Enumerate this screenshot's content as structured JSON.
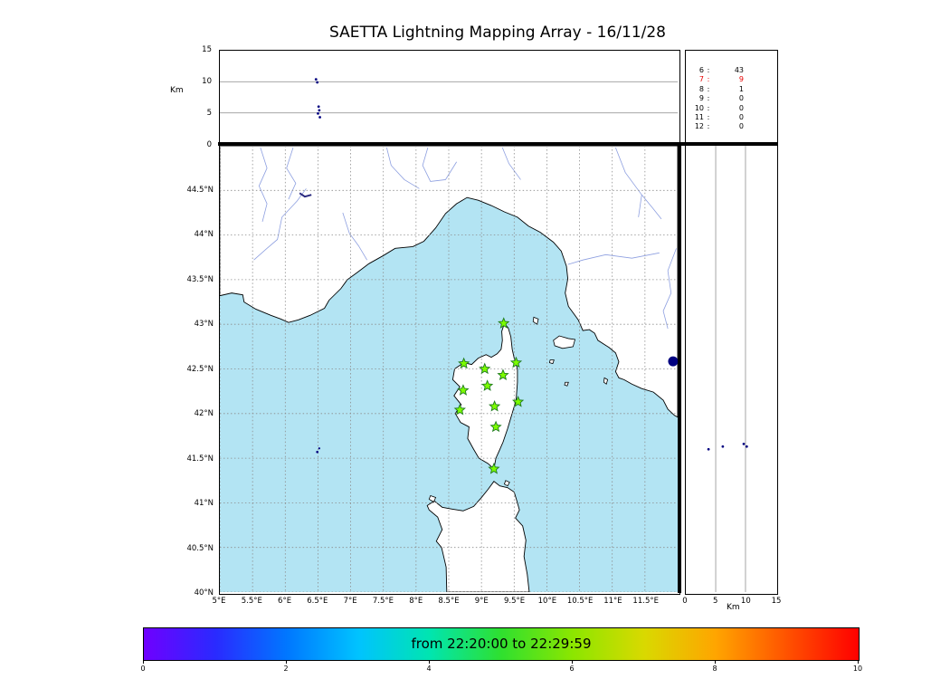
{
  "title": "SAETTA Lightning Mapping Array - 16/11/28",
  "chart_data": {
    "type": "scatter",
    "description": "Lightning Mapping Array composite: altitude vs longitude (top), plan map view (center), altitude vs latitude (right), time colorbar (bottom)",
    "alt_axis": {
      "label": "Km",
      "max": 15,
      "ticks": [
        0,
        5,
        10,
        15
      ],
      "gridlines": [
        5,
        10
      ]
    },
    "map": {
      "lon_min": 5,
      "lon_max": 12,
      "lat_min": 40,
      "lat_max": 45,
      "lon_ticks": [
        {
          "v": 5,
          "label": "5°E"
        },
        {
          "v": 5.5,
          "label": "5.5°E"
        },
        {
          "v": 6,
          "label": "6°E"
        },
        {
          "v": 6.5,
          "label": "6.5°E"
        },
        {
          "v": 7,
          "label": "7°E"
        },
        {
          "v": 7.5,
          "label": "7.5°E"
        },
        {
          "v": 8,
          "label": "8°E"
        },
        {
          "v": 8.5,
          "label": "8.5°E"
        },
        {
          "v": 9,
          "label": "9°E"
        },
        {
          "v": 9.5,
          "label": "9.5°E"
        },
        {
          "v": 10,
          "label": "10°E"
        },
        {
          "v": 10.5,
          "label": "10.5°E"
        },
        {
          "v": 11,
          "label": "11°E"
        },
        {
          "v": 11.5,
          "label": "11.5°E"
        }
      ],
      "lat_ticks": [
        {
          "v": 44.5,
          "label": "44.5°N"
        },
        {
          "v": 44,
          "label": "44°N"
        },
        {
          "v": 43.5,
          "label": "43.5°N"
        },
        {
          "v": 43,
          "label": "43°N"
        },
        {
          "v": 42.5,
          "label": "42.5°N"
        },
        {
          "v": 42,
          "label": "42°N"
        },
        {
          "v": 41.5,
          "label": "41.5°N"
        },
        {
          "v": 41,
          "label": "41°N"
        },
        {
          "v": 40.5,
          "label": "40.5°N"
        },
        {
          "v": 40,
          "label": "40°N"
        }
      ]
    },
    "station_counts": [
      {
        "id": "6",
        "count": "43",
        "highlight": false
      },
      {
        "id": "7",
        "count": "9",
        "highlight": true
      },
      {
        "id": "8",
        "count": "1",
        "highlight": false
      },
      {
        "id": "9",
        "count": "0",
        "highlight": false
      },
      {
        "id": "10",
        "count": "0",
        "highlight": false
      },
      {
        "id": "11",
        "count": "0",
        "highlight": false
      },
      {
        "id": "12",
        "count": "0",
        "highlight": false
      }
    ],
    "stations": [
      [
        9.34,
        43.01
      ],
      [
        8.73,
        42.56
      ],
      [
        9.05,
        42.5
      ],
      [
        9.33,
        42.43
      ],
      [
        9.53,
        42.57
      ],
      [
        8.72,
        42.26
      ],
      [
        9.09,
        42.31
      ],
      [
        8.67,
        42.04
      ],
      [
        9.2,
        42.08
      ],
      [
        9.56,
        42.13
      ],
      [
        9.22,
        41.85
      ],
      [
        9.19,
        41.38
      ]
    ],
    "events": {
      "plan": [
        {
          "lon": 11.93,
          "lat": 42.585,
          "r": 5.5
        },
        {
          "lon": 6.49,
          "lat": 41.57,
          "r": 1.3
        },
        {
          "lon": 6.52,
          "lat": 41.61,
          "r": 1.1
        }
      ],
      "lon_alt": [
        [
          6.47,
          10.4
        ],
        [
          6.49,
          9.9
        ],
        [
          6.51,
          6.0
        ],
        [
          6.52,
          5.4
        ],
        [
          6.5,
          4.9
        ],
        [
          6.53,
          4.3
        ]
      ],
      "alt_lat": [
        [
          3.8,
          41.6
        ],
        [
          6.2,
          41.63
        ],
        [
          9.7,
          41.66
        ],
        [
          10.2,
          41.63
        ]
      ]
    },
    "colorbar": {
      "label": "from 22:20:00 to 22:29:59",
      "ticks": [
        0,
        2,
        4,
        6,
        8,
        10
      ],
      "max": 10,
      "colors": [
        "#6f00ff",
        "#2a2aff",
        "#0077ff",
        "#00c3ff",
        "#00e5b0",
        "#2fe02f",
        "#8ce600",
        "#d9d900",
        "#ffa500",
        "#ff5200",
        "#ff0000"
      ]
    },
    "colors": {
      "sea": "#b3e4f3",
      "land": "#ffffff",
      "coast": "#000000",
      "river": "#8d9fe0",
      "grid": "#8c8c8c",
      "station_fill": "#7CFC00",
      "station_edge": "#1f7a1f",
      "event": "#000080",
      "highlight": "#e80000",
      "lake": "#2a2a80"
    },
    "basemap": {
      "mainland": [
        [
          5.0,
          43.32
        ],
        [
          5.18,
          43.35
        ],
        [
          5.35,
          43.33
        ],
        [
          5.37,
          43.25
        ],
        [
          5.55,
          43.17
        ],
        [
          5.78,
          43.1
        ],
        [
          5.93,
          43.06
        ],
        [
          6.05,
          43.02
        ],
        [
          6.2,
          43.05
        ],
        [
          6.38,
          43.1
        ],
        [
          6.6,
          43.18
        ],
        [
          6.67,
          43.27
        ],
        [
          6.85,
          43.4
        ],
        [
          6.95,
          43.5
        ],
        [
          7.1,
          43.58
        ],
        [
          7.28,
          43.68
        ],
        [
          7.5,
          43.77
        ],
        [
          7.68,
          43.85
        ],
        [
          7.95,
          43.87
        ],
        [
          8.12,
          43.93
        ],
        [
          8.3,
          44.08
        ],
        [
          8.45,
          44.24
        ],
        [
          8.62,
          44.35
        ],
        [
          8.78,
          44.42
        ],
        [
          8.95,
          44.39
        ],
        [
          9.15,
          44.33
        ],
        [
          9.35,
          44.26
        ],
        [
          9.55,
          44.2
        ],
        [
          9.72,
          44.1
        ],
        [
          9.9,
          44.03
        ],
        [
          10.1,
          43.92
        ],
        [
          10.22,
          43.82
        ],
        [
          10.3,
          43.65
        ],
        [
          10.32,
          43.51
        ],
        [
          10.28,
          43.35
        ],
        [
          10.33,
          43.2
        ],
        [
          10.48,
          43.05
        ],
        [
          10.55,
          42.93
        ],
        [
          10.65,
          42.94
        ],
        [
          10.73,
          42.9
        ],
        [
          10.78,
          42.82
        ],
        [
          10.95,
          42.74
        ],
        [
          11.05,
          42.68
        ],
        [
          11.1,
          42.58
        ],
        [
          11.05,
          42.47
        ],
        [
          11.1,
          42.4
        ],
        [
          11.18,
          42.38
        ],
        [
          11.3,
          42.33
        ],
        [
          11.45,
          42.28
        ],
        [
          11.63,
          42.24
        ],
        [
          11.78,
          42.15
        ],
        [
          11.85,
          42.05
        ],
        [
          11.95,
          41.98
        ],
        [
          12.0,
          41.96
        ],
        [
          12.0,
          45.0
        ],
        [
          5.0,
          45.0
        ]
      ],
      "corsica": [
        [
          9.35,
          43.01
        ],
        [
          9.41,
          42.96
        ],
        [
          9.45,
          42.86
        ],
        [
          9.47,
          42.72
        ],
        [
          9.5,
          42.62
        ],
        [
          9.55,
          42.5
        ],
        [
          9.55,
          42.35
        ],
        [
          9.53,
          42.15
        ],
        [
          9.46,
          41.98
        ],
        [
          9.4,
          41.83
        ],
        [
          9.33,
          41.68
        ],
        [
          9.27,
          41.58
        ],
        [
          9.22,
          41.5
        ],
        [
          9.19,
          41.38
        ],
        [
          9.1,
          41.44
        ],
        [
          8.96,
          41.5
        ],
        [
          8.88,
          41.6
        ],
        [
          8.79,
          41.72
        ],
        [
          8.81,
          41.85
        ],
        [
          8.68,
          41.9
        ],
        [
          8.6,
          42.0
        ],
        [
          8.69,
          42.1
        ],
        [
          8.58,
          42.2
        ],
        [
          8.67,
          42.3
        ],
        [
          8.56,
          42.38
        ],
        [
          8.59,
          42.5
        ],
        [
          8.73,
          42.57
        ],
        [
          8.85,
          42.55
        ],
        [
          8.95,
          42.62
        ],
        [
          9.07,
          42.66
        ],
        [
          9.15,
          42.63
        ],
        [
          9.24,
          42.67
        ],
        [
          9.3,
          42.72
        ],
        [
          9.32,
          42.82
        ],
        [
          9.31,
          42.92
        ]
      ],
      "sardinia": [
        [
          8.47,
          40.0
        ],
        [
          8.46,
          40.28
        ],
        [
          8.39,
          40.5
        ],
        [
          8.31,
          40.57
        ],
        [
          8.4,
          40.7
        ],
        [
          8.33,
          40.84
        ],
        [
          8.2,
          40.92
        ],
        [
          8.17,
          40.97
        ],
        [
          8.28,
          41.02
        ],
        [
          8.4,
          40.95
        ],
        [
          8.55,
          40.93
        ],
        [
          8.72,
          40.91
        ],
        [
          8.88,
          40.96
        ],
        [
          9.0,
          41.06
        ],
        [
          9.1,
          41.15
        ],
        [
          9.19,
          41.24
        ],
        [
          9.28,
          41.19
        ],
        [
          9.4,
          41.17
        ],
        [
          9.5,
          41.12
        ],
        [
          9.55,
          41.0
        ],
        [
          9.58,
          40.92
        ],
        [
          9.52,
          40.83
        ],
        [
          9.63,
          40.74
        ],
        [
          9.68,
          40.58
        ],
        [
          9.65,
          40.4
        ],
        [
          9.7,
          40.2
        ],
        [
          9.73,
          40.0
        ]
      ],
      "islands": [
        [
          [
            10.1,
            42.82
          ],
          [
            10.19,
            42.87
          ],
          [
            10.33,
            42.84
          ],
          [
            10.43,
            42.83
          ],
          [
            10.4,
            42.75
          ],
          [
            10.24,
            42.73
          ],
          [
            10.12,
            42.76
          ]
        ],
        [
          [
            9.8,
            43.08
          ],
          [
            9.87,
            43.06
          ],
          [
            9.85,
            43.0
          ],
          [
            9.79,
            43.03
          ]
        ],
        [
          [
            10.05,
            42.6
          ],
          [
            10.11,
            42.6
          ],
          [
            10.09,
            42.56
          ],
          [
            10.04,
            42.57
          ]
        ],
        [
          [
            10.28,
            42.35
          ],
          [
            10.33,
            42.35
          ],
          [
            10.31,
            42.31
          ],
          [
            10.27,
            42.32
          ]
        ],
        [
          [
            10.88,
            42.4
          ],
          [
            10.93,
            42.38
          ],
          [
            10.91,
            42.33
          ],
          [
            10.87,
            42.35
          ]
        ],
        [
          [
            9.37,
            41.25
          ],
          [
            9.43,
            41.23
          ],
          [
            9.4,
            41.19
          ],
          [
            9.35,
            41.21
          ]
        ],
        [
          [
            8.22,
            41.08
          ],
          [
            8.3,
            41.06
          ],
          [
            8.27,
            41.01
          ],
          [
            8.2,
            41.04
          ]
        ]
      ],
      "rivers": [
        [
          [
            5.62,
            44.98
          ],
          [
            5.72,
            44.75
          ],
          [
            5.6,
            44.55
          ],
          [
            5.72,
            44.35
          ],
          [
            5.65,
            44.15
          ]
        ],
        [
          [
            6.12,
            44.98
          ],
          [
            6.02,
            44.75
          ],
          [
            6.16,
            44.58
          ],
          [
            6.05,
            44.4
          ]
        ],
        [
          [
            6.32,
            44.52
          ],
          [
            6.18,
            44.38
          ],
          [
            5.95,
            44.2
          ],
          [
            5.88,
            43.95
          ],
          [
            5.72,
            43.85
          ],
          [
            5.52,
            43.72
          ]
        ],
        [
          [
            6.88,
            44.25
          ],
          [
            6.98,
            44.02
          ],
          [
            7.12,
            43.88
          ],
          [
            7.25,
            43.72
          ]
        ],
        [
          [
            7.55,
            44.98
          ],
          [
            7.62,
            44.78
          ],
          [
            7.82,
            44.62
          ],
          [
            8.05,
            44.52
          ]
        ],
        [
          [
            8.18,
            44.98
          ],
          [
            8.1,
            44.78
          ],
          [
            8.22,
            44.6
          ],
          [
            8.45,
            44.62
          ],
          [
            8.62,
            44.82
          ]
        ],
        [
          [
            9.32,
            44.98
          ],
          [
            9.42,
            44.8
          ],
          [
            9.6,
            44.62
          ]
        ],
        [
          [
            11.05,
            44.98
          ],
          [
            11.2,
            44.7
          ],
          [
            11.45,
            44.45
          ],
          [
            11.4,
            44.2
          ]
        ],
        [
          [
            11.45,
            44.45
          ],
          [
            11.62,
            44.3
          ],
          [
            11.75,
            44.18
          ]
        ],
        [
          [
            11.98,
            43.85
          ],
          [
            11.85,
            43.6
          ],
          [
            11.9,
            43.35
          ],
          [
            11.78,
            43.15
          ],
          [
            11.85,
            42.95
          ]
        ],
        [
          [
            11.72,
            43.8
          ],
          [
            11.3,
            43.74
          ],
          [
            10.9,
            43.78
          ],
          [
            10.55,
            43.72
          ],
          [
            10.32,
            43.67
          ]
        ]
      ],
      "lakes": [
        [
          [
            6.22,
            44.47
          ],
          [
            6.3,
            44.43
          ],
          [
            6.4,
            44.45
          ]
        ]
      ]
    }
  }
}
